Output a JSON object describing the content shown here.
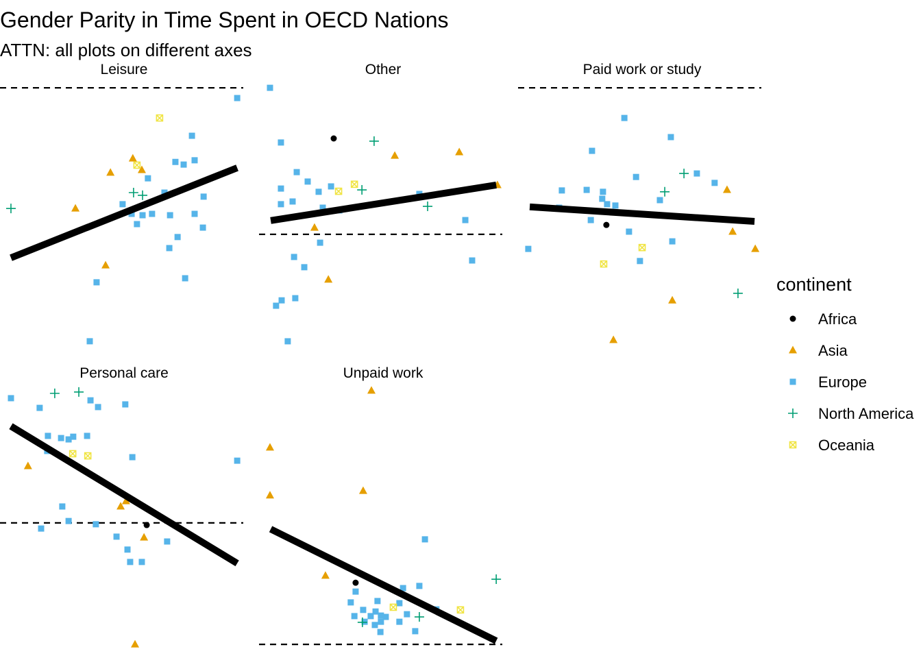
{
  "title": "Gender Parity in Time Spent in OECD Nations",
  "subtitle": "ATTN: all plots on different axes",
  "legend_title": "continent",
  "chart_data": [
    {
      "type": "scatter",
      "title": "Leisure",
      "xlim": [
        0,
        100
      ],
      "ylim": [
        0,
        100
      ],
      "reference_line": 95.9,
      "fit_line": {
        "x": [
          4.5,
          97.5
        ],
        "y": [
          32.8,
          66.2
        ]
      },
      "series": [
        {
          "name": "Africa",
          "color": "#000000",
          "shape": "circle",
          "x": [],
          "y": []
        },
        {
          "name": "Asia",
          "color": "#E69F00",
          "shape": "triangle",
          "x": [
            54.6,
            45.4,
            58.3,
            31.0,
            43.4
          ],
          "y": [
            69.7,
            64.4,
            65.4,
            51.1,
            30.0
          ]
        },
        {
          "name": "Europe",
          "color": "#56B4E9",
          "shape": "square",
          "x": [
            97.5,
            78.9,
            72.1,
            75.5,
            80.0,
            60.8,
            67.6,
            83.7,
            50.4,
            54.1,
            58.6,
            62.5,
            69.9,
            80.0,
            56.3,
            83.4,
            73.0,
            69.6,
            39.7,
            76.1,
            36.9
          ],
          "y": [
            92.1,
            78.1,
            68.4,
            67.4,
            69.0,
            62.3,
            57.0,
            55.5,
            52.7,
            49.1,
            48.6,
            49.1,
            48.6,
            49.1,
            45.3,
            44.0,
            40.5,
            36.4,
            23.7,
            25.2,
            1.8
          ]
        },
        {
          "name": "North America",
          "color": "#009E73",
          "shape": "plus",
          "x": [
            4.5,
            54.9,
            58.6
          ],
          "y": [
            51.1,
            57.0,
            56.0
          ]
        },
        {
          "name": "Oceania",
          "color": "#F0E442",
          "shape": "boxx",
          "x": [
            65.6,
            56.3
          ],
          "y": [
            84.7,
            67.2
          ]
        }
      ]
    },
    {
      "type": "scatter",
      "title": "Other",
      "xlim": [
        0,
        100
      ],
      "ylim": [
        0,
        100
      ],
      "reference_line": 41.5,
      "fit_line": {
        "x": [
          4.8,
          97.5
        ],
        "y": [
          46.6,
          59.8
        ]
      },
      "series": [
        {
          "name": "Africa",
          "color": "#000000",
          "shape": "circle",
          "x": [
            30.7
          ],
          "y": [
            77.1
          ]
        },
        {
          "name": "Asia",
          "color": "#E69F00",
          "shape": "triangle",
          "x": [
            55.8,
            82.3,
            98.0,
            22.8,
            28.5
          ],
          "y": [
            70.7,
            72.0,
            59.8,
            44.0,
            24.7
          ]
        },
        {
          "name": "Europe",
          "color": "#56B4E9",
          "shape": "square",
          "x": [
            4.5,
            9.0,
            15.5,
            9.0,
            20.0,
            24.5,
            29.6,
            9.0,
            13.8,
            26.2,
            33.0,
            65.9,
            84.8,
            25.1,
            14.4,
            18.6,
            87.6,
            14.9,
            9.3,
            7.0,
            11.8
          ],
          "y": [
            95.9,
            75.6,
            64.6,
            58.5,
            61.1,
            57.3,
            59.3,
            52.7,
            53.7,
            51.4,
            50.4,
            56.5,
            46.8,
            38.4,
            33.1,
            29.3,
            31.8,
            17.8,
            17.0,
            15.0,
            1.8
          ]
        },
        {
          "name": "North America",
          "color": "#009E73",
          "shape": "plus",
          "x": [
            47.3,
            42.3,
            69.3
          ],
          "y": [
            76.1,
            58.0,
            51.9
          ]
        },
        {
          "name": "Oceania",
          "color": "#F0E442",
          "shape": "boxx",
          "x": [
            32.7,
            39.2
          ],
          "y": [
            57.5,
            60.1
          ]
        }
      ]
    },
    {
      "type": "scatter",
      "title": "Paid work or study",
      "xlim": [
        0,
        100
      ],
      "ylim": [
        0,
        100
      ],
      "reference_line": 95.9,
      "fit_line": {
        "x": [
          4.8,
          97.2
        ],
        "y": [
          51.7,
          46.3
        ]
      },
      "series": [
        {
          "name": "Africa",
          "color": "#000000",
          "shape": "circle",
          "x": [
            36.3
          ],
          "y": [
            45.0
          ]
        },
        {
          "name": "Asia",
          "color": "#E69F00",
          "shape": "triangle",
          "x": [
            85.9,
            88.2,
            97.5,
            63.4,
            39.2
          ],
          "y": [
            58.0,
            42.5,
            36.1,
            17.0,
            2.3
          ]
        },
        {
          "name": "Europe",
          "color": "#56B4E9",
          "shape": "square",
          "x": [
            43.7,
            62.8,
            30.4,
            48.5,
            73.5,
            80.8,
            18.0,
            28.2,
            34.9,
            34.6,
            36.6,
            40.0,
            58.3,
            16.9,
            29.9,
            45.6,
            63.4,
            50.1,
            4.2
          ],
          "y": [
            84.7,
            77.6,
            72.5,
            62.8,
            64.1,
            60.6,
            57.8,
            58.0,
            57.3,
            54.7,
            52.7,
            52.2,
            54.2,
            51.4,
            46.8,
            42.5,
            38.9,
            31.6,
            36.1
          ]
        },
        {
          "name": "North America",
          "color": "#009E73",
          "shape": "plus",
          "x": [
            68.2,
            60.3,
            90.4
          ],
          "y": [
            64.1,
            57.3,
            19.6
          ]
        },
        {
          "name": "Oceania",
          "color": "#F0E442",
          "shape": "boxx",
          "x": [
            51.0,
            35.2
          ],
          "y": [
            36.6,
            30.5
          ]
        }
      ]
    },
    {
      "type": "scatter",
      "title": "Personal care",
      "xlim": [
        0,
        100
      ],
      "ylim": [
        0,
        100
      ],
      "reference_line": 47.1,
      "fit_line": {
        "x": [
          4.5,
          97.5
        ],
        "y": [
          83.0,
          32.1
        ]
      },
      "series": [
        {
          "name": "Africa",
          "color": "#000000",
          "shape": "circle",
          "x": [
            60.3
          ],
          "y": [
            46.3
          ]
        },
        {
          "name": "Asia",
          "color": "#E69F00",
          "shape": "triangle",
          "x": [
            11.5,
            49.6,
            51.8,
            59.2,
            55.5
          ],
          "y": [
            68.2,
            53.2,
            55.2,
            41.7,
            2.0
          ]
        },
        {
          "name": "Europe",
          "color": "#56B4E9",
          "shape": "square",
          "x": [
            4.5,
            16.3,
            37.2,
            40.3,
            51.5,
            19.7,
            25.1,
            28.2,
            30.1,
            35.8,
            19.4,
            54.4,
            97.5,
            25.6,
            28.2,
            39.4,
            16.9,
            47.9,
            68.7,
            52.4,
            53.5,
            58.3
          ],
          "y": [
            93.4,
            89.8,
            92.6,
            90.1,
            91.1,
            79.4,
            78.6,
            78.1,
            79.1,
            79.4,
            73.8,
            71.5,
            70.2,
            53.2,
            47.8,
            46.6,
            45.0,
            42.0,
            40.2,
            37.2,
            32.6,
            32.6
          ]
        },
        {
          "name": "North America",
          "color": "#009E73",
          "shape": "plus",
          "x": [
            22.5,
            32.4
          ],
          "y": [
            95.2,
            95.7
          ]
        },
        {
          "name": "Oceania",
          "color": "#F0E442",
          "shape": "boxx",
          "x": [
            29.9,
            36.1
          ],
          "y": [
            72.8,
            72.0
          ]
        }
      ]
    },
    {
      "type": "scatter",
      "title": "Unpaid work",
      "xlim": [
        0,
        100
      ],
      "ylim": [
        0,
        100
      ],
      "reference_line": 2.0,
      "fit_line": {
        "x": [
          4.8,
          97.5
        ],
        "y": [
          44.8,
          3.3
        ]
      },
      "series": [
        {
          "name": "Africa",
          "color": "#000000",
          "shape": "circle",
          "x": [
            39.7
          ],
          "y": [
            24.9
          ]
        },
        {
          "name": "Asia",
          "color": "#E69F00",
          "shape": "triangle",
          "x": [
            46.2,
            4.5,
            4.5,
            42.8,
            27.3
          ],
          "y": [
            96.2,
            75.1,
            57.3,
            59.0,
            27.5
          ]
        },
        {
          "name": "Europe",
          "color": "#56B4E9",
          "shape": "square",
          "x": [
            68.2,
            65.9,
            59.2,
            37.7,
            48.7,
            42.8,
            47.9,
            45.9,
            39.2,
            50.1,
            57.7,
            52.1,
            60.8,
            72.9,
            43.4,
            50.1,
            57.7,
            47.6,
            49.9,
            64.2,
            39.7
          ],
          "y": [
            41.0,
            23.7,
            22.9,
            17.6,
            18.1,
            14.8,
            14.2,
            12.5,
            12.5,
            12.7,
            17.3,
            12.2,
            13.2,
            15.0,
            10.4,
            10.4,
            10.4,
            9.2,
            6.6,
            6.9,
            21.6
          ]
        },
        {
          "name": "North America",
          "color": "#009E73",
          "shape": "plus",
          "x": [
            42.5,
            65.9,
            97.5
          ],
          "y": [
            10.2,
            12.2,
            26.2
          ]
        },
        {
          "name": "Oceania",
          "color": "#F0E442",
          "shape": "boxx",
          "x": [
            55.2,
            82.8
          ],
          "y": [
            15.8,
            14.8
          ]
        }
      ]
    }
  ]
}
